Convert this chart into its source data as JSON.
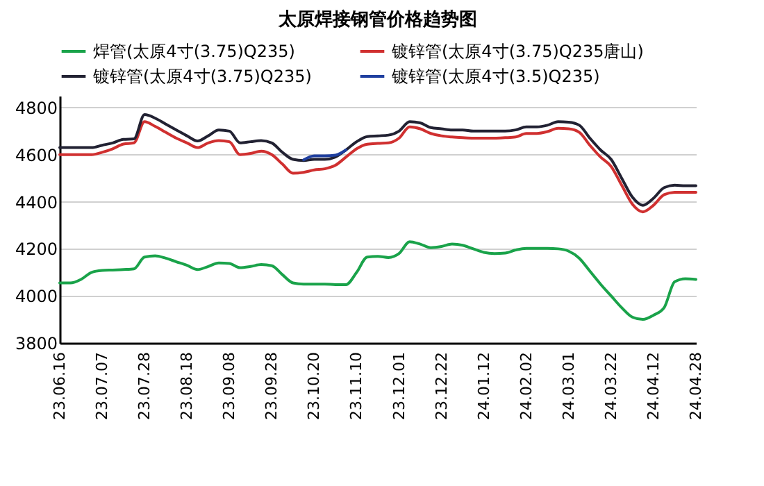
{
  "chart_data": {
    "type": "line",
    "title": "太原焊接钢管价格趋势图",
    "categories": [
      "23.06.16",
      null,
      null,
      null,
      "23.07.07",
      null,
      null,
      null,
      "23.07.28",
      null,
      null,
      null,
      "23.08.18",
      null,
      null,
      null,
      "23.09.08",
      null,
      null,
      null,
      "23.09.28",
      null,
      null,
      null,
      "23.10.20",
      null,
      null,
      null,
      "23.11.10",
      null,
      null,
      null,
      "23.12.01",
      null,
      null,
      null,
      "23.12.22",
      null,
      null,
      null,
      "24.01.12",
      null,
      null,
      null,
      "24.02.02",
      null,
      null,
      null,
      "24.03.01",
      null,
      null,
      null,
      "24.03.22",
      null,
      null,
      null,
      "24.04.12",
      null,
      null,
      null,
      "24.04.28"
    ],
    "series": [
      {
        "name": "焊管(太原4寸(3.75)Q235)",
        "color": "#1aa34a",
        "values": [
          4055,
          4055,
          4070,
          4100,
          4108,
          4110,
          4112,
          4115,
          4165,
          4170,
          4160,
          4145,
          4130,
          4112,
          4125,
          4140,
          4138,
          4120,
          4125,
          4133,
          4128,
          4090,
          4055,
          4050,
          4050,
          4050,
          4048,
          4048,
          4100,
          4165,
          4168,
          4163,
          4180,
          4230,
          4220,
          4205,
          4210,
          4220,
          4215,
          4200,
          4185,
          4180,
          4182,
          4195,
          4202,
          4202,
          4202,
          4200,
          4190,
          4160,
          4105,
          4050,
          4000,
          3950,
          3910,
          3900,
          3918,
          3950,
          4060,
          4073,
          4070
        ]
      },
      {
        "name": "镀锌管(太原4寸(3.75)Q235唐山)",
        "color": "#d03030",
        "values": [
          4600,
          4600,
          4600,
          4600,
          4610,
          4625,
          4645,
          4650,
          4740,
          4720,
          4695,
          4670,
          4650,
          4630,
          4650,
          4660,
          4655,
          4600,
          4605,
          4615,
          4600,
          4560,
          4521,
          4525,
          4535,
          4540,
          4555,
          4590,
          4625,
          4644,
          4648,
          4650,
          4670,
          4718,
          4710,
          4690,
          4680,
          4675,
          4672,
          4670,
          4670,
          4670,
          4672,
          4675,
          4690,
          4690,
          4698,
          4712,
          4710,
          4695,
          4640,
          4590,
          4550,
          4470,
          4390,
          4357,
          4385,
          4430,
          4440,
          4440,
          4440
        ]
      },
      {
        "name": "镀锌管(太原4寸(3.75)Q235)",
        "color": "#222233",
        "values": [
          4630,
          4630,
          4630,
          4630,
          4640,
          4650,
          4665,
          4667,
          4770,
          4755,
          4730,
          4705,
          4680,
          4658,
          4680,
          4705,
          4700,
          4650,
          4655,
          4660,
          4650,
          4610,
          4580,
          4575,
          4580,
          4580,
          4590,
          4620,
          4655,
          4677,
          4680,
          4683,
          4700,
          4740,
          4735,
          4715,
          4710,
          4705,
          4705,
          4700,
          4700,
          4700,
          4700,
          4705,
          4718,
          4718,
          4725,
          4740,
          4738,
          4725,
          4670,
          4620,
          4580,
          4500,
          4420,
          4385,
          4415,
          4460,
          4470,
          4468,
          4468
        ]
      },
      {
        "name": "镀锌管(太原4寸(3.5)Q235)",
        "color": "#1f3f9f",
        "values": [
          null,
          null,
          null,
          null,
          null,
          null,
          null,
          null,
          null,
          null,
          null,
          null,
          null,
          null,
          null,
          null,
          null,
          null,
          null,
          null,
          null,
          null,
          null,
          4578,
          4595,
          4595,
          4598,
          4620,
          null,
          null,
          null,
          null,
          null,
          null,
          null,
          null,
          null,
          null,
          null,
          null,
          null,
          null,
          null,
          null,
          null,
          null,
          null,
          null,
          null,
          null,
          null,
          null,
          null,
          null,
          null,
          null,
          null,
          null,
          null,
          null,
          null
        ]
      }
    ],
    "ylim": [
      3800,
      4850
    ],
    "yticks": [
      3800,
      4000,
      4200,
      4400,
      4600,
      4800
    ],
    "grid": "y",
    "legend": "top",
    "marker": "none",
    "line_style": "solid"
  }
}
